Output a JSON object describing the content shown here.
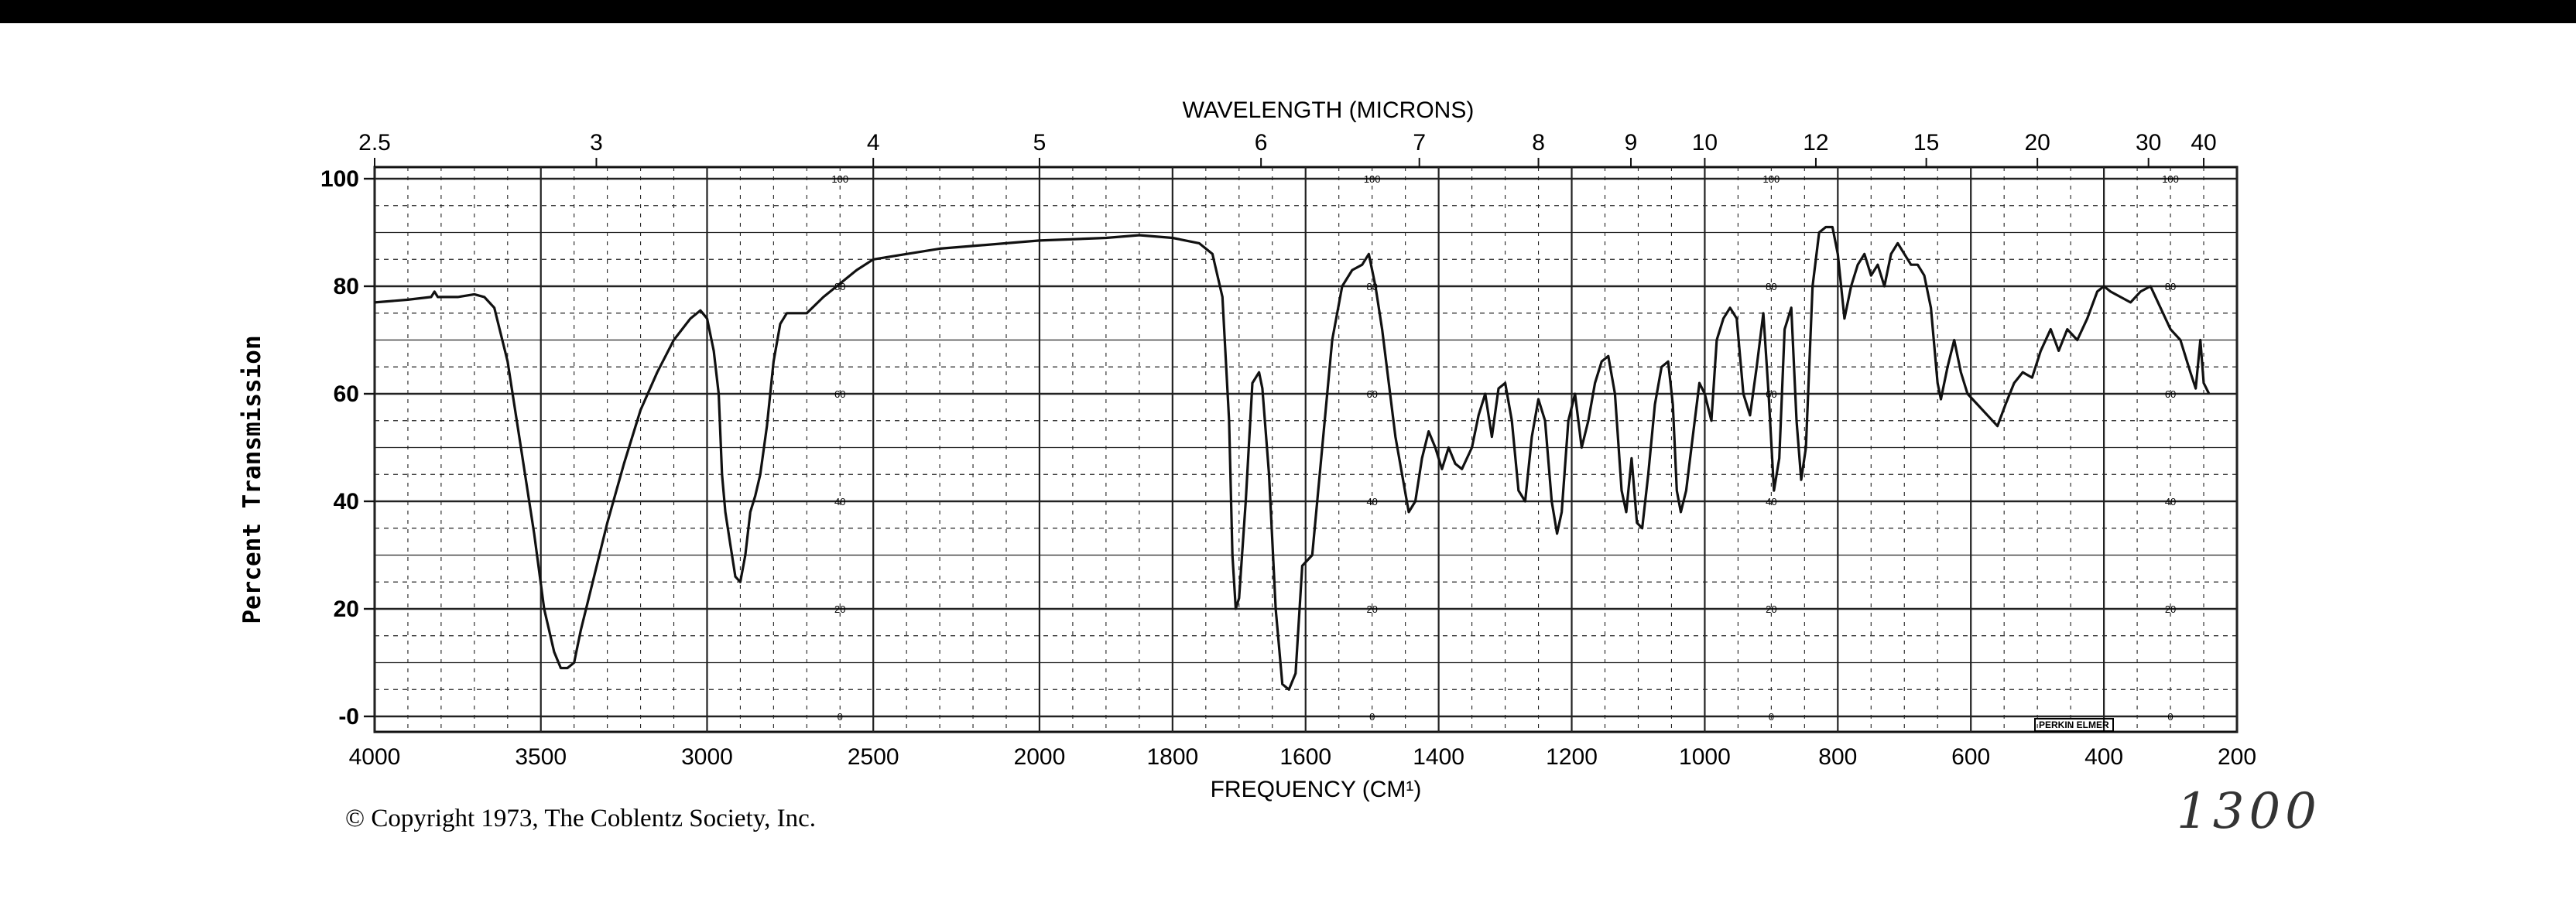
{
  "chart_data": {
    "type": "line",
    "top_axis_title": "WAVELENGTH (MICRONS)",
    "xlabel": "FREQUENCY (CM¹)",
    "ylabel": "Percent Transmission",
    "xlim": [
      4000,
      200
    ],
    "ylim": [
      0,
      100
    ],
    "x_ticks": [
      "4000",
      "3500",
      "3000",
      "2500",
      "2000",
      "1800",
      "1600",
      "1400",
      "1200",
      "1000",
      "800",
      "600",
      "400",
      "200"
    ],
    "y_ticks": [
      "0",
      "20",
      "40",
      "60",
      "80",
      "100"
    ],
    "inner_scale_labels": [
      "0",
      "20",
      "40",
      "60",
      "80",
      "100"
    ],
    "wavelength_ticks": [
      {
        "label": "2.5",
        "freq": 4000
      },
      {
        "label": "3",
        "freq": 3333
      },
      {
        "label": "4",
        "freq": 2500
      },
      {
        "label": "5",
        "freq": 2000
      },
      {
        "label": "6",
        "freq": 1667
      },
      {
        "label": "7",
        "freq": 1429
      },
      {
        "label": "8",
        "freq": 1250
      },
      {
        "label": "9",
        "freq": 1111
      },
      {
        "label": "10",
        "freq": 1000
      },
      {
        "label": "12",
        "freq": 833
      },
      {
        "label": "15",
        "freq": 667
      },
      {
        "label": "20",
        "freq": 500
      },
      {
        "label": "30",
        "freq": 333
      },
      {
        "label": "40",
        "freq": 250
      }
    ],
    "series": [
      {
        "points": [
          [
            4000,
            77
          ],
          [
            3900,
            77.5
          ],
          [
            3830,
            78
          ],
          [
            3820,
            79
          ],
          [
            3810,
            78
          ],
          [
            3750,
            78
          ],
          [
            3700,
            78.5
          ],
          [
            3670,
            78
          ],
          [
            3640,
            76
          ],
          [
            3600,
            66
          ],
          [
            3560,
            50
          ],
          [
            3520,
            34
          ],
          [
            3490,
            20
          ],
          [
            3460,
            12
          ],
          [
            3440,
            9
          ],
          [
            3420,
            9
          ],
          [
            3400,
            10
          ],
          [
            3380,
            16
          ],
          [
            3340,
            26
          ],
          [
            3300,
            36
          ],
          [
            3250,
            47
          ],
          [
            3200,
            57
          ],
          [
            3150,
            64
          ],
          [
            3100,
            70
          ],
          [
            3050,
            74
          ],
          [
            3020,
            75.5
          ],
          [
            3000,
            74
          ],
          [
            2980,
            68
          ],
          [
            2965,
            60
          ],
          [
            2955,
            45
          ],
          [
            2945,
            38
          ],
          [
            2930,
            32
          ],
          [
            2915,
            26
          ],
          [
            2900,
            25
          ],
          [
            2885,
            30
          ],
          [
            2870,
            38
          ],
          [
            2855,
            41
          ],
          [
            2840,
            45
          ],
          [
            2820,
            54
          ],
          [
            2800,
            66
          ],
          [
            2780,
            73
          ],
          [
            2760,
            75
          ],
          [
            2700,
            75
          ],
          [
            2650,
            78
          ],
          [
            2600,
            80.5
          ],
          [
            2550,
            83
          ],
          [
            2500,
            85
          ],
          [
            2400,
            86
          ],
          [
            2300,
            87
          ],
          [
            2200,
            87.5
          ],
          [
            2100,
            88
          ],
          [
            2000,
            88.5
          ],
          [
            1900,
            89
          ],
          [
            1850,
            89.5
          ],
          [
            1800,
            89
          ],
          [
            1760,
            88
          ],
          [
            1740,
            86
          ],
          [
            1725,
            78
          ],
          [
            1715,
            55
          ],
          [
            1710,
            30
          ],
          [
            1705,
            20
          ],
          [
            1700,
            22
          ],
          [
            1690,
            40
          ],
          [
            1680,
            62
          ],
          [
            1670,
            64
          ],
          [
            1665,
            61
          ],
          [
            1655,
            45
          ],
          [
            1645,
            20
          ],
          [
            1635,
            6
          ],
          [
            1625,
            5
          ],
          [
            1615,
            8
          ],
          [
            1605,
            28
          ],
          [
            1590,
            30
          ],
          [
            1575,
            50
          ],
          [
            1560,
            70
          ],
          [
            1545,
            80
          ],
          [
            1530,
            83
          ],
          [
            1515,
            84
          ],
          [
            1505,
            86
          ],
          [
            1495,
            80
          ],
          [
            1485,
            72
          ],
          [
            1475,
            62
          ],
          [
            1465,
            52
          ],
          [
            1455,
            45
          ],
          [
            1445,
            38
          ],
          [
            1435,
            40
          ],
          [
            1425,
            48
          ],
          [
            1415,
            53
          ],
          [
            1405,
            50
          ],
          [
            1395,
            46
          ],
          [
            1385,
            50
          ],
          [
            1375,
            47
          ],
          [
            1365,
            46
          ],
          [
            1350,
            50
          ],
          [
            1340,
            56
          ],
          [
            1330,
            60
          ],
          [
            1320,
            52
          ],
          [
            1310,
            61
          ],
          [
            1300,
            62
          ],
          [
            1290,
            55
          ],
          [
            1280,
            42
          ],
          [
            1270,
            40
          ],
          [
            1260,
            52
          ],
          [
            1250,
            59
          ],
          [
            1240,
            55
          ],
          [
            1230,
            40
          ],
          [
            1222,
            34
          ],
          [
            1215,
            38
          ],
          [
            1205,
            55
          ],
          [
            1195,
            60
          ],
          [
            1185,
            50
          ],
          [
            1175,
            55
          ],
          [
            1165,
            62
          ],
          [
            1155,
            66
          ],
          [
            1145,
            67
          ],
          [
            1135,
            60
          ],
          [
            1125,
            42
          ],
          [
            1118,
            38
          ],
          [
            1110,
            48
          ],
          [
            1102,
            36
          ],
          [
            1094,
            35
          ],
          [
            1085,
            45
          ],
          [
            1075,
            58
          ],
          [
            1065,
            65
          ],
          [
            1055,
            66
          ],
          [
            1048,
            58
          ],
          [
            1042,
            42
          ],
          [
            1036,
            38
          ],
          [
            1028,
            42
          ],
          [
            1018,
            52
          ],
          [
            1008,
            62
          ],
          [
            1000,
            60
          ],
          [
            990,
            55
          ],
          [
            982,
            70
          ],
          [
            972,
            74
          ],
          [
            962,
            76
          ],
          [
            952,
            74
          ],
          [
            942,
            60
          ],
          [
            932,
            56
          ],
          [
            922,
            65
          ],
          [
            912,
            75
          ],
          [
            904,
            60
          ],
          [
            896,
            42
          ],
          [
            888,
            48
          ],
          [
            880,
            72
          ],
          [
            870,
            76
          ],
          [
            862,
            55
          ],
          [
            855,
            44
          ],
          [
            848,
            50
          ],
          [
            838,
            80
          ],
          [
            828,
            90
          ],
          [
            818,
            91
          ],
          [
            808,
            91
          ],
          [
            800,
            86
          ],
          [
            790,
            74
          ],
          [
            780,
            80
          ],
          [
            770,
            84
          ],
          [
            760,
            86
          ],
          [
            750,
            82
          ],
          [
            740,
            84
          ],
          [
            730,
            80
          ],
          [
            720,
            86
          ],
          [
            710,
            88
          ],
          [
            700,
            86
          ],
          [
            690,
            84
          ],
          [
            680,
            84
          ],
          [
            670,
            82
          ],
          [
            660,
            76
          ],
          [
            650,
            62
          ],
          [
            645,
            59
          ],
          [
            635,
            65
          ],
          [
            625,
            70
          ],
          [
            615,
            64
          ],
          [
            605,
            60
          ],
          [
            590,
            58
          ],
          [
            575,
            56
          ],
          [
            560,
            54
          ],
          [
            548,
            58
          ],
          [
            535,
            62
          ],
          [
            522,
            64
          ],
          [
            508,
            63
          ],
          [
            495,
            68
          ],
          [
            480,
            72
          ],
          [
            468,
            68
          ],
          [
            455,
            72
          ],
          [
            440,
            70
          ],
          [
            425,
            74
          ],
          [
            410,
            79
          ],
          [
            400,
            80
          ],
          [
            390,
            79
          ],
          [
            375,
            78
          ],
          [
            360,
            77
          ],
          [
            345,
            79
          ],
          [
            330,
            80
          ],
          [
            315,
            76
          ],
          [
            300,
            72
          ],
          [
            285,
            70
          ],
          [
            270,
            64
          ],
          [
            262,
            61
          ],
          [
            255,
            70
          ],
          [
            250,
            62
          ],
          [
            242,
            60
          ]
        ]
      }
    ]
  },
  "copyright": "© Copyright 1973, The Coblentz Society, Inc.",
  "instrument_label": "PERKIN ELMER",
  "handwritten_note": "1300",
  "colors": {
    "line": "#111111",
    "grid": "#222222",
    "background": "#ffffff"
  }
}
